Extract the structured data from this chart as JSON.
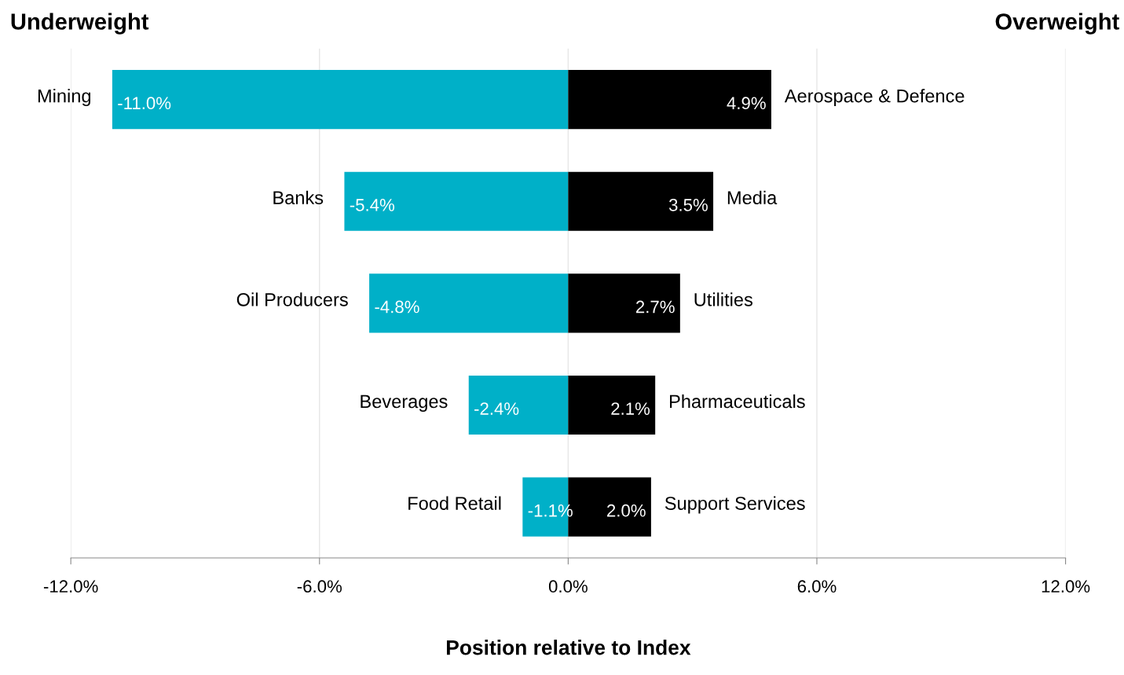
{
  "chart_data": {
    "type": "bar",
    "orientation": "horizontal",
    "stacked": true,
    "categories": [
      "Mining",
      "Banks",
      "Oil Producers",
      "Beverages",
      "Food Retail"
    ],
    "series": [
      {
        "color": "#00b0c8",
        "values": [
          -11.0,
          -5.4,
          -4.8,
          -2.4,
          -1.1
        ],
        "value_labels": [
          "-11.0%",
          "-5.4%",
          "-4.8%",
          "-2.4%",
          "-1.1%"
        ]
      },
      {
        "color": "#000000",
        "values": [
          4.9,
          3.5,
          2.7,
          2.1,
          2.0
        ],
        "value_labels": [
          "4.9%",
          "3.5%",
          "2.7%",
          "2.1%",
          "2.0%"
        ]
      }
    ],
    "xlim": [
      -12,
      12
    ],
    "xticks": [
      {
        "value": -12,
        "label": "-12.0%"
      },
      {
        "value": -6,
        "label": "-6.0%"
      },
      {
        "value": 0,
        "label": "0.0%"
      },
      {
        "value": 6,
        "label": "6.0%"
      },
      {
        "value": 12,
        "label": "12.0%"
      }
    ],
    "tick_labels": "x",
    "grid": "x",
    "legend": false,
    "xlabel": "Position relative to Index",
    "annotations": [
      "Underweight",
      "Overweight",
      {
        "text": "Aerospace & Defence",
        "x": 4.9,
        "y": "Mining"
      },
      {
        "text": "Media",
        "x": 3.5,
        "y": "Banks"
      },
      {
        "text": "Utilities",
        "x": 2.7,
        "y": "Oil Producers"
      },
      {
        "text": "Pharmaceuticals",
        "x": 2.1,
        "y": "Beverages"
      },
      {
        "text": "Support Services",
        "x": 2.0,
        "y": "Food Retail"
      }
    ]
  }
}
